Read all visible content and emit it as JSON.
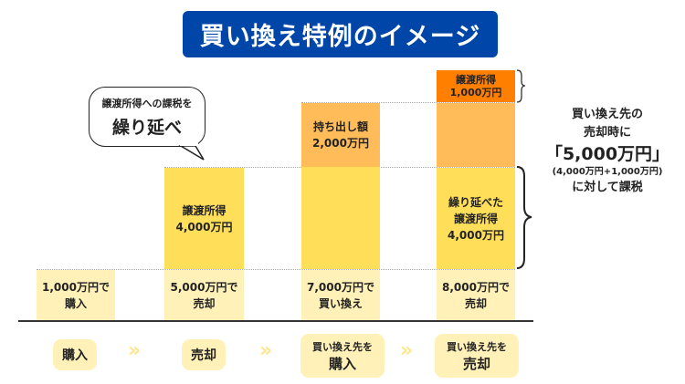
{
  "title": "買い換え特例のイメージ",
  "bubble": {
    "line1": "譲渡所得への課税を",
    "line2": "繰り延べ"
  },
  "columns": [
    {
      "base": [
        "1,000万円で",
        "購入"
      ]
    },
    {
      "base": [
        "5,000万円で",
        "売却"
      ],
      "gain": [
        "譲渡所得",
        "4,000万円"
      ]
    },
    {
      "base": [
        "7,000万円で",
        "買い換え"
      ],
      "carry": [
        "持ち出し額",
        "2,000万円"
      ]
    },
    {
      "base": [
        "8,000万円で",
        "売却"
      ],
      "gain": [
        "繰り延べた",
        "譲渡所得",
        "4,000万円"
      ],
      "top": [
        "譲渡所得",
        "1,000万円"
      ]
    }
  ],
  "steps": [
    {
      "lines": [
        "購入"
      ]
    },
    {
      "lines": [
        "売却"
      ]
    },
    {
      "lines": [
        "買い換え先を",
        "購入"
      ]
    },
    {
      "lines": [
        "買い換え先を",
        "売却"
      ]
    }
  ],
  "chevron": "»",
  "right_note": {
    "l1": "買い換え先の",
    "l2": "売却時に",
    "l3": "「5,000万円」",
    "l4": "(4,000万円+1,000万円)",
    "l5": "に対して課税"
  },
  "colors": {
    "title_bg": "#0046A8",
    "light": "#FFF1B8",
    "yellow": "#FFDE59",
    "light_orange": "#FFBC58",
    "dark_orange": "#FF7F00"
  }
}
